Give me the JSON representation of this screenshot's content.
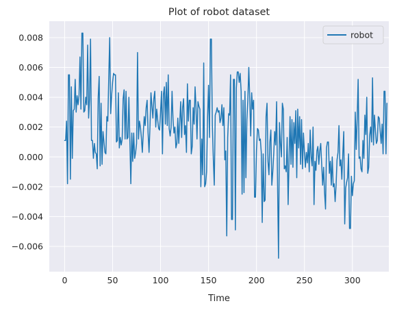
{
  "chart_data": {
    "type": "line",
    "title": "Plot of robot dataset",
    "xlabel": "Time",
    "ylabel": "",
    "xlim": [
      -16,
      338
    ],
    "ylim": [
      -0.0077,
      0.0091
    ],
    "xticks": [
      0,
      50,
      100,
      150,
      200,
      250,
      300
    ],
    "xtick_labels": [
      "0",
      "50",
      "100",
      "150",
      "200",
      "250",
      "300"
    ],
    "yticks": [
      -0.006,
      -0.004,
      -0.002,
      0.0,
      0.002,
      0.004,
      0.006,
      0.008
    ],
    "ytick_labels": [
      "−0.006",
      "−0.004",
      "−0.002",
      "0.000",
      "0.002",
      "0.004",
      "0.006",
      "0.008"
    ],
    "grid": true,
    "legend_position": "top-right",
    "background": "#eaeaf2",
    "series": [
      {
        "name": "robot",
        "color": "#1f77b4",
        "x_start": 0,
        "values": [
          0.0011,
          0.0011,
          0.0024,
          -0.0018,
          0.0055,
          0.0055,
          -0.0015,
          0.0047,
          -0.0001,
          0.0031,
          0.0032,
          0.0052,
          0.003,
          0.0041,
          0.0035,
          0.0041,
          0.0067,
          0.0032,
          0.0083,
          0.0083,
          0.003,
          0.0031,
          0.004,
          0.0035,
          0.0075,
          0.0026,
          0.0039,
          0.0079,
          0.0011,
          0.0011,
          -0.0001,
          0.0009,
          0.0003,
          0.0002,
          -0.0008,
          0.004,
          0.0054,
          -0.0006,
          0.0036,
          -0.0005,
          0.0017,
          0.001,
          0.0003,
          0.0002,
          0.0027,
          0.0024,
          0.0053,
          0.008,
          0.0029,
          0.0041,
          0.005,
          0.0056,
          0.0055,
          0.0055,
          0.001,
          0.0011,
          0.0043,
          0.0006,
          0.0013,
          0.0008,
          0.0012,
          0.0039,
          0.0045,
          0.0012,
          0.0044,
          0.0012,
          0.0013,
          0.004,
          0.0011,
          -0.0018,
          0.0016,
          -0.0003,
          0.0016,
          -0.0001,
          0.0003,
          0.0009,
          0.007,
          0.0012,
          0.0024,
          0.002,
          0.0013,
          0.0003,
          0.0016,
          0.0027,
          0.0021,
          0.0033,
          0.0038,
          0.0016,
          0.0003,
          0.0021,
          0.0043,
          0.0034,
          0.0026,
          0.0039,
          0.0044,
          0.002,
          0.0032,
          0.0025,
          0.0019,
          0.0018,
          0.003,
          0.0044,
          0.0002,
          0.0042,
          0.0047,
          0.0022,
          0.005,
          0.0021,
          0.0055,
          0.0019,
          0.0014,
          0.002,
          0.0044,
          0.0025,
          0.0016,
          0.002,
          0.0006,
          0.0009,
          0.0026,
          0.0009,
          0.0023,
          0.0037,
          0.0013,
          0.0033,
          0.0039,
          0.0015,
          0.0021,
          0.0003,
          0.0049,
          0.0024,
          0.0038,
          0.0038,
          0.0002,
          0.0007,
          0.0033,
          0.0022,
          0.0047,
          0.0033,
          0.0012,
          0.0037,
          0.0034,
          0.0032,
          -0.002,
          0.0012,
          -0.0012,
          0.0063,
          -0.002,
          -0.0018,
          -0.001,
          0.0026,
          0.0048,
          0.0013,
          0.0079,
          0.0079,
          0.0021,
          -0.0001,
          -0.0019,
          0.0028,
          0.003,
          0.0033,
          0.003,
          0.0031,
          0.0023,
          0.0026,
          0.0035,
          0.0021,
          0.0033,
          -0.0002,
          0.0004,
          -0.0053,
          0.0013,
          0.0029,
          0.0028,
          0.0055,
          -0.0042,
          -0.0042,
          0.0052,
          0.0052,
          -0.0049,
          0.0046,
          0.0057,
          0.0057,
          0.005,
          0.0056,
          0.0044,
          -0.0025,
          0.0038,
          -0.0024,
          0.0044,
          -0.0014,
          0.0025,
          0.0038,
          0.006,
          0.0039,
          0.0014,
          0.0043,
          0.0032,
          0.0038,
          -0.0027,
          -0.0027,
          0.0004,
          0.0019,
          0.0018,
          0.0011,
          0.0012,
          0.0003,
          -0.0044,
          0.0002,
          -0.003,
          -0.0029,
          0.0027,
          0.0036,
          -0.0003,
          -0.0012,
          0.001,
          0.0018,
          -0.0019,
          -0.001,
          0.0002,
          0.0017,
          0.0008,
          0.0037,
          -0.0019,
          -0.0068,
          0.0023,
          0.0009,
          0.0,
          0.0036,
          0.0032,
          -0.0008,
          -0.0006,
          -0.001,
          0.0013,
          -0.0032,
          -0.0002,
          0.0027,
          -0.0005,
          0.0025,
          -0.0007,
          0.0023,
          0.0009,
          0.0031,
          -0.0014,
          0.0032,
          0.0006,
          0.0027,
          -0.0005,
          0.0025,
          -0.0008,
          0.0016,
          0.0003,
          -0.0007,
          0.0003,
          -0.0004,
          0.0009,
          -0.001,
          0.0018,
          0.0,
          -0.0006,
          0.002,
          -0.0032,
          -0.0003,
          -0.0009,
          0.0004,
          0.0007,
          -0.0005,
          0.0004,
          0.0009,
          -0.0005,
          -0.0019,
          -0.0007,
          -0.0024,
          -0.0035,
          0.0006,
          0.001,
          0.001,
          -0.0011,
          -0.0003,
          -0.0019,
          0.0,
          -0.002,
          -0.0018,
          -0.003,
          -0.0019,
          -0.0002,
          0.0003,
          0.0021,
          -0.0006,
          -0.0002,
          -0.0015,
          0.0002,
          0.0017,
          -0.0045,
          -0.0021,
          -0.0017,
          -0.0014,
          0.0002,
          -0.0048,
          -0.0048,
          -0.0013,
          -0.0026,
          -0.0018,
          -0.0016,
          0.003,
          0.0005,
          0.0026,
          0.0052,
          -0.0001,
          0.0,
          -0.0008,
          -0.001,
          0.0011,
          -0.0001,
          0.0028,
          0.0015,
          0.004,
          -0.0011,
          -0.0007,
          0.0014,
          0.002,
          0.001,
          0.0053,
          0.0008,
          0.0028,
          0.0018,
          0.0009,
          0.0011,
          0.0027,
          0.0026,
          0.0017,
          0.0009,
          0.0022,
          0.0002,
          0.0044,
          0.0044,
          0.0002,
          0.0036
        ]
      }
    ]
  }
}
